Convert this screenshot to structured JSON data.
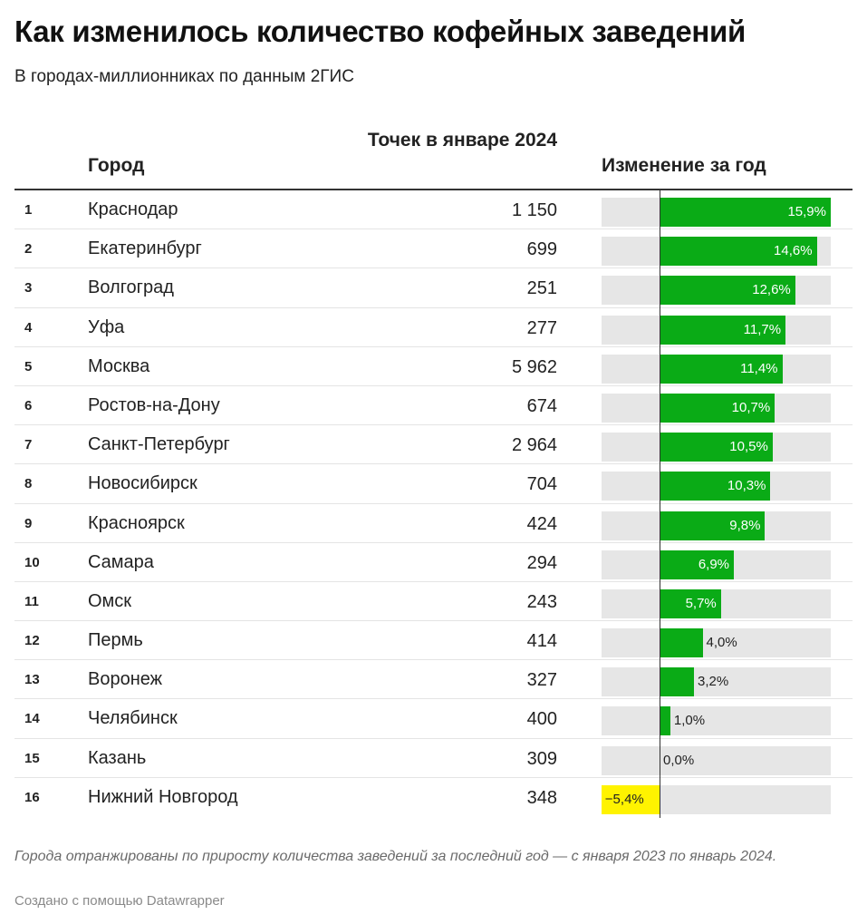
{
  "title": "Как изменилось количество кофейных заведений",
  "subtitle": "В городах-миллионниках по данным 2ГИС",
  "columns": {
    "city": "Город",
    "count": "Точек в январе 2024",
    "change": "Изменение за год"
  },
  "colors": {
    "positive": "#0aab16",
    "negative": "#fff300",
    "track": "#e6e6e6"
  },
  "chart_data": {
    "type": "table",
    "columns": [
      "",
      "Город",
      "Точек в январе 2024",
      "Изменение за год"
    ],
    "xlim": [
      -5.4,
      15.9
    ],
    "rows": [
      {
        "rank": "1",
        "city": "Краснодар",
        "count": "1 150",
        "change": 15.9,
        "change_label": "15,9%"
      },
      {
        "rank": "2",
        "city": "Екатеринбург",
        "count": "699",
        "change": 14.6,
        "change_label": "14,6%"
      },
      {
        "rank": "3",
        "city": "Волгоград",
        "count": "251",
        "change": 12.6,
        "change_label": "12,6%"
      },
      {
        "rank": "4",
        "city": "Уфа",
        "count": "277",
        "change": 11.7,
        "change_label": "11,7%"
      },
      {
        "rank": "5",
        "city": "Москва",
        "count": "5 962",
        "change": 11.4,
        "change_label": "11,4%"
      },
      {
        "rank": "6",
        "city": "Ростов-на-Дону",
        "count": "674",
        "change": 10.7,
        "change_label": "10,7%"
      },
      {
        "rank": "7",
        "city": "Санкт-Петербург",
        "count": "2 964",
        "change": 10.5,
        "change_label": "10,5%"
      },
      {
        "rank": "8",
        "city": "Новосибирск",
        "count": "704",
        "change": 10.3,
        "change_label": "10,3%"
      },
      {
        "rank": "9",
        "city": "Красноярск",
        "count": "424",
        "change": 9.8,
        "change_label": "9,8%"
      },
      {
        "rank": "10",
        "city": "Самара",
        "count": "294",
        "change": 6.9,
        "change_label": "6,9%"
      },
      {
        "rank": "11",
        "city": "Омск",
        "count": "243",
        "change": 5.7,
        "change_label": "5,7%"
      },
      {
        "rank": "12",
        "city": "Пермь",
        "count": "414",
        "change": 4.0,
        "change_label": "4,0%"
      },
      {
        "rank": "13",
        "city": "Воронеж",
        "count": "327",
        "change": 3.2,
        "change_label": "3,2%"
      },
      {
        "rank": "14",
        "city": "Челябинск",
        "count": "400",
        "change": 1.0,
        "change_label": "1,0%"
      },
      {
        "rank": "15",
        "city": "Казань",
        "count": "309",
        "change": 0.0,
        "change_label": "0,0%"
      },
      {
        "rank": "16",
        "city": "Нижний Новгород",
        "count": "348",
        "change": -5.4,
        "change_label": "−5,4%"
      }
    ]
  },
  "note": "Города отранжированы по приросту количества заведений за последний год — с января 2023 по январь 2024.",
  "credit": "Создано с помощью Datawrapper"
}
